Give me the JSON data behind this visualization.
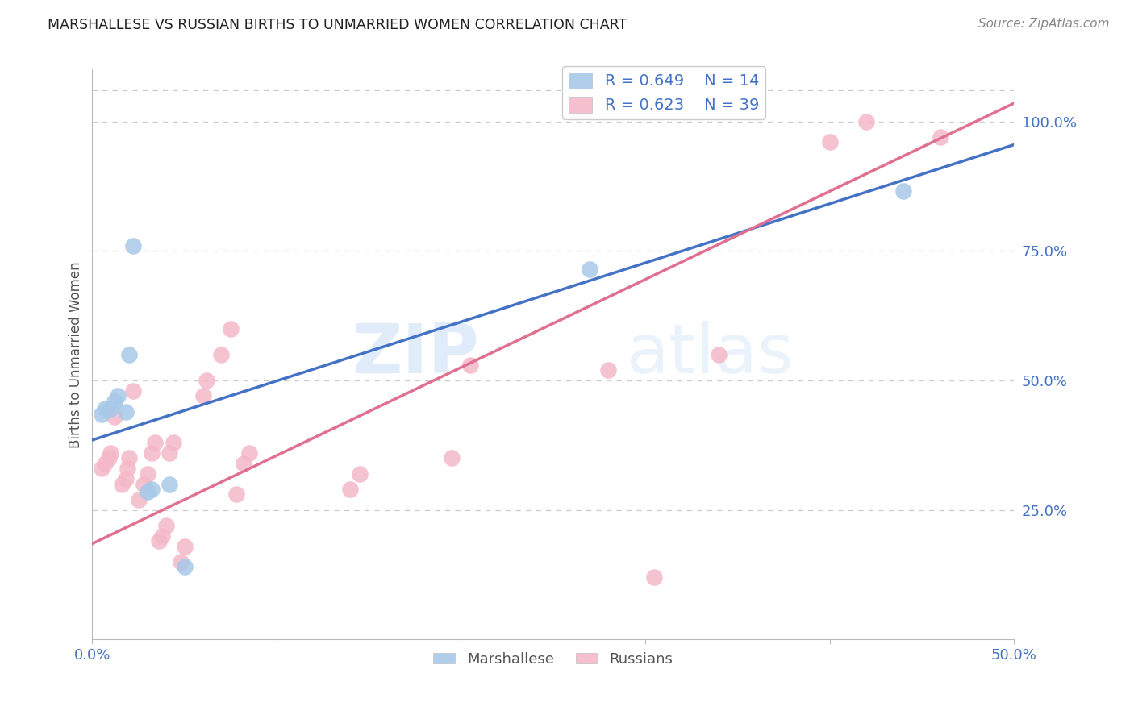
{
  "title": "MARSHALLESE VS RUSSIAN BIRTHS TO UNMARRIED WOMEN CORRELATION CHART",
  "source": "Source: ZipAtlas.com",
  "ylabel": "Births to Unmarried Women",
  "xlim": [
    0.0,
    0.5
  ],
  "ylim": [
    0.0,
    1.1
  ],
  "xtick_vals": [
    0.0,
    0.1,
    0.2,
    0.3,
    0.4,
    0.5
  ],
  "xtick_labels": [
    "0.0%",
    "",
    "",
    "",
    "",
    "50.0%"
  ],
  "ytick_right_vals": [
    0.25,
    0.5,
    0.75,
    1.0
  ],
  "ytick_right_labels": [
    "25.0%",
    "50.0%",
    "75.0%",
    "100.0%"
  ],
  "blue_scatter_color": "#a8c8e8",
  "pink_scatter_color": "#f4b8c8",
  "blue_line_color": "#4472c4",
  "pink_line_color": "#e07090",
  "legend_r_blue": "R = 0.649",
  "legend_n_blue": "N = 14",
  "legend_r_pink": "R = 0.623",
  "legend_n_pink": "N = 39",
  "marshallese_x": [
    0.005,
    0.007,
    0.01,
    0.012,
    0.014,
    0.018,
    0.02,
    0.022,
    0.03,
    0.032,
    0.042,
    0.05,
    0.27,
    0.44
  ],
  "marshallese_y": [
    0.435,
    0.445,
    0.445,
    0.46,
    0.47,
    0.44,
    0.55,
    0.76,
    0.285,
    0.29,
    0.3,
    0.14,
    0.715,
    0.865
  ],
  "russians_x": [
    0.005,
    0.007,
    0.009,
    0.01,
    0.012,
    0.016,
    0.018,
    0.019,
    0.02,
    0.022,
    0.025,
    0.028,
    0.03,
    0.032,
    0.034,
    0.036,
    0.038,
    0.04,
    0.042,
    0.044,
    0.048,
    0.05,
    0.06,
    0.062,
    0.07,
    0.075,
    0.078,
    0.082,
    0.085,
    0.14,
    0.145,
    0.195,
    0.205,
    0.28,
    0.305,
    0.34,
    0.4,
    0.42,
    0.46
  ],
  "russians_y": [
    0.33,
    0.34,
    0.35,
    0.36,
    0.43,
    0.3,
    0.31,
    0.33,
    0.35,
    0.48,
    0.27,
    0.3,
    0.32,
    0.36,
    0.38,
    0.19,
    0.2,
    0.22,
    0.36,
    0.38,
    0.15,
    0.18,
    0.47,
    0.5,
    0.55,
    0.6,
    0.28,
    0.34,
    0.36,
    0.29,
    0.32,
    0.35,
    0.53,
    0.52,
    0.12,
    0.55,
    0.96,
    1.0,
    0.97
  ],
  "watermark_zip": "ZIP",
  "watermark_atlas": "atlas",
  "background_color": "#ffffff",
  "grid_color": "#cccccc",
  "axis_color": "#4472c4",
  "title_color": "#222222",
  "ylabel_color": "#555555",
  "source_color": "#888888",
  "legend_text_color": "#4472c4",
  "bottom_legend_color": "#555555",
  "blue_line_intercept": 0.385,
  "blue_line_slope": 1.14,
  "pink_line_intercept": 0.185,
  "pink_line_slope": 1.7
}
